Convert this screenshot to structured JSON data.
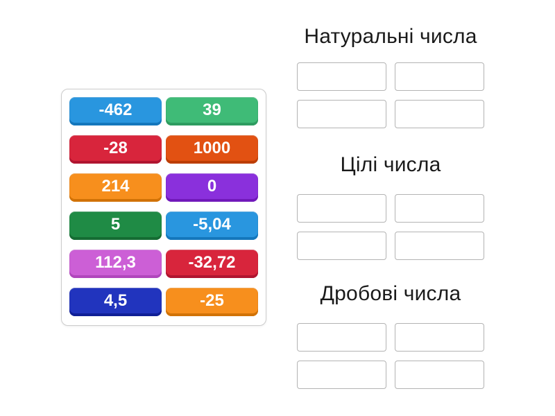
{
  "board": {
    "tiles": [
      {
        "label": "-462",
        "color": "#2996df",
        "edge_color": "#1477bc"
      },
      {
        "label": "39",
        "color": "#3fbb77",
        "edge_color": "#2e9c60"
      },
      {
        "label": "-28",
        "color": "#d8253c",
        "edge_color": "#b01530"
      },
      {
        "label": "1000",
        "color": "#e25112",
        "edge_color": "#bc3e04"
      },
      {
        "label": "214",
        "color": "#f78f1d",
        "edge_color": "#d17206"
      },
      {
        "label": "0",
        "color": "#8a30dc",
        "edge_color": "#7119ba"
      },
      {
        "label": "5",
        "color": "#1f8b45",
        "edge_color": "#156c33"
      },
      {
        "label": "-5,04",
        "color": "#2996df",
        "edge_color": "#1477bc"
      },
      {
        "label": "112,3",
        "color": "#cc5fd6",
        "edge_color": "#b046bc"
      },
      {
        "label": "-32,72",
        "color": "#d8253c",
        "edge_color": "#b01530"
      },
      {
        "label": "4,5",
        "color": "#2134be",
        "edge_color": "#101f96"
      },
      {
        "label": "-25",
        "color": "#f78f1d",
        "edge_color": "#d17206"
      }
    ]
  },
  "groups": [
    {
      "title": "Натуральні числа",
      "slot_count": 4
    },
    {
      "title": "Цілі числа",
      "slot_count": 4
    },
    {
      "title": "Дробові числа",
      "slot_count": 4
    }
  ]
}
